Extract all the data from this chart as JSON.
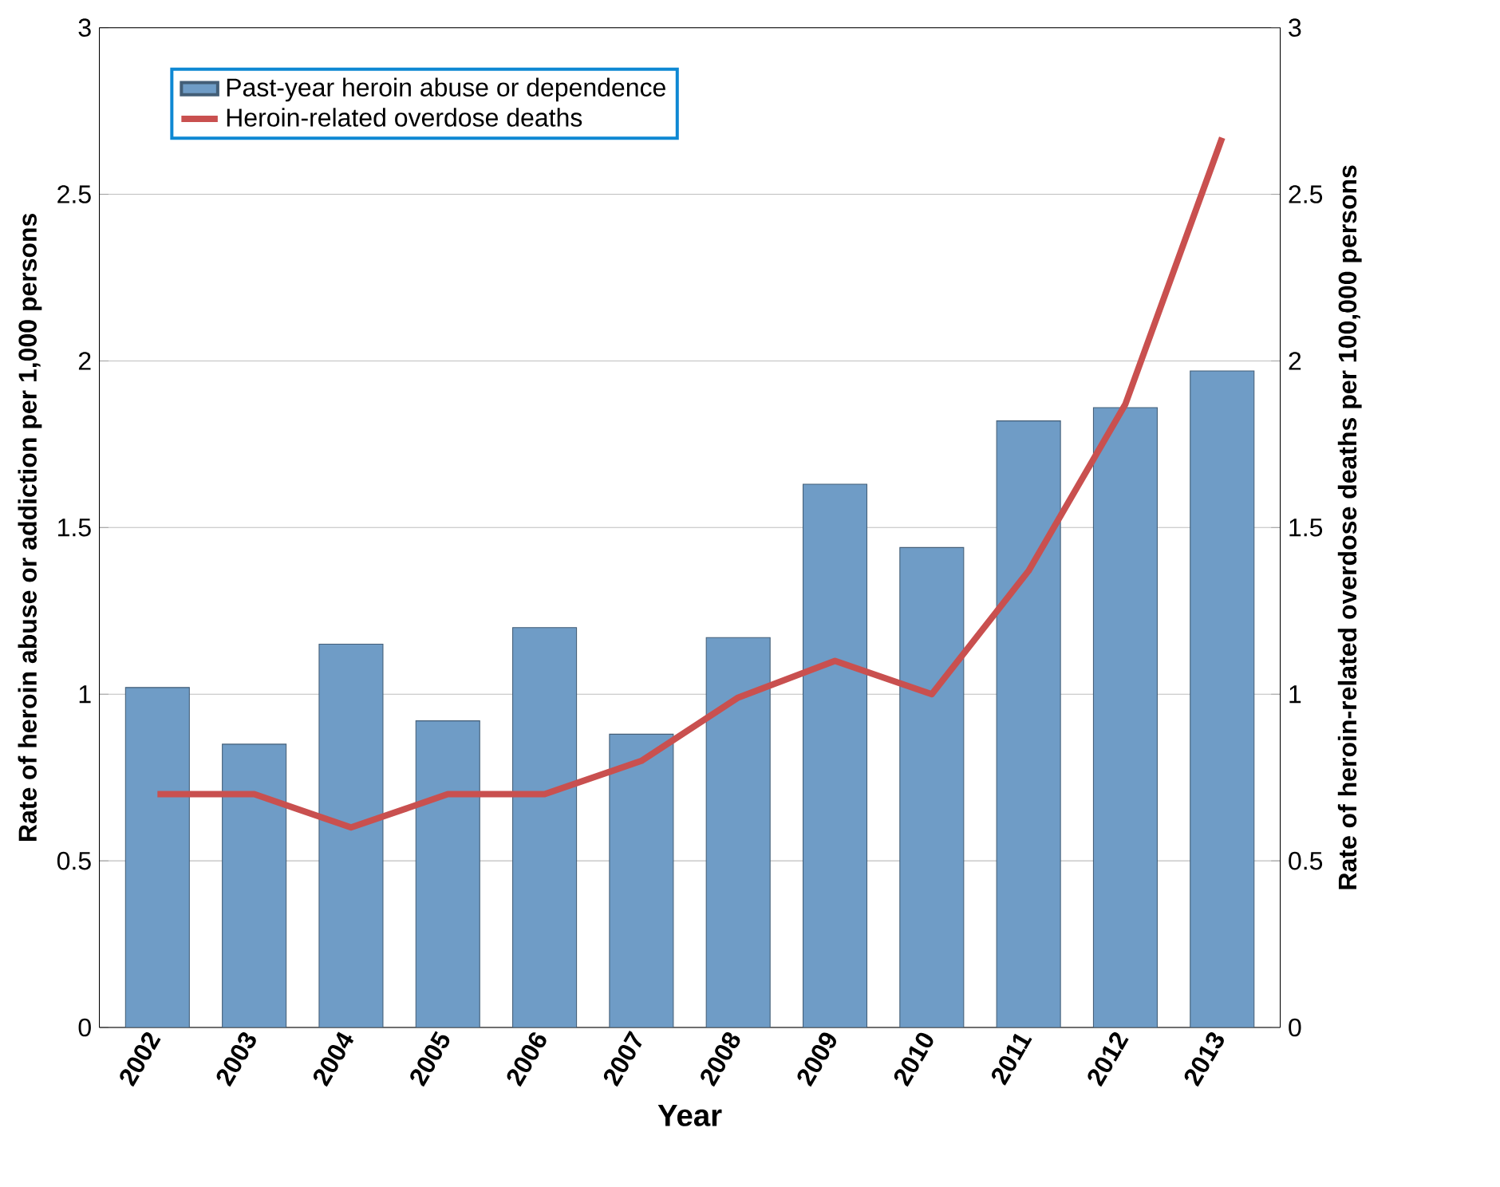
{
  "chart_data": {
    "type": "bar",
    "xlabel": "Year",
    "ylabel": "Rate of heroin abuse or addiction per 1,000 persons",
    "y2label": "Rate of heroin-related overdose deaths per 100,000 persons",
    "categories": [
      "2002",
      "2003",
      "2004",
      "2005",
      "2006",
      "2007",
      "2008",
      "2009",
      "2010",
      "2011",
      "2012",
      "2013"
    ],
    "series": [
      {
        "name": "Past-year heroin abuse or dependence",
        "color": "#6f9cc6",
        "values": [
          1.02,
          0.85,
          1.15,
          0.92,
          1.2,
          0.88,
          1.17,
          1.63,
          1.44,
          1.82,
          1.86,
          1.97
        ]
      },
      {
        "name": "Heroin-related overdose deaths",
        "type": "line",
        "axis": "y2",
        "color": "#c9504f",
        "values": [
          0.7,
          0.7,
          0.6,
          0.7,
          0.7,
          0.8,
          0.99,
          1.1,
          1.0,
          1.37,
          1.87,
          2.67
        ]
      }
    ],
    "ylim": [
      0,
      3
    ],
    "yticks": [
      0,
      0.5,
      1,
      1.5,
      2,
      2.5,
      3
    ],
    "y2lim": [
      0,
      3
    ],
    "y2ticks": [
      0,
      0.5,
      1,
      1.5,
      2,
      2.5,
      3
    ],
    "grid": "y",
    "legend": "top left",
    "marker": "none",
    "line_style": "solid"
  }
}
